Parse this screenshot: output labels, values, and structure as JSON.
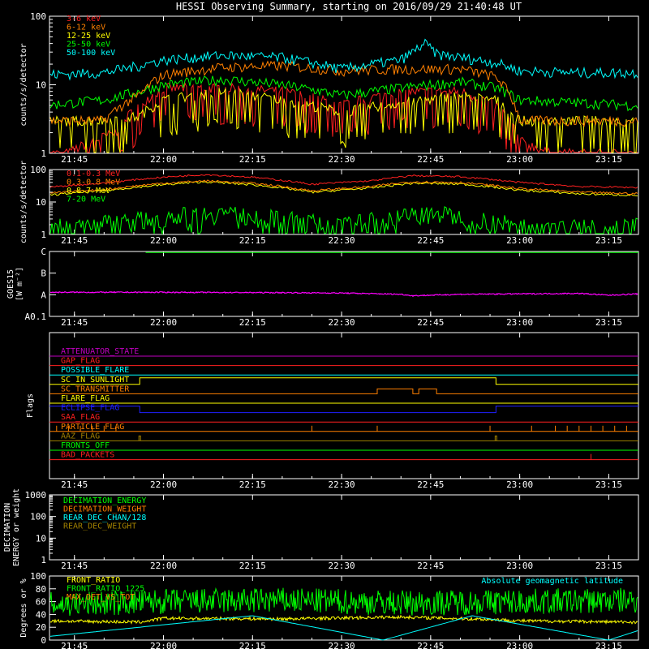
{
  "title": "HESSI Observing Summary, starting on 2016/09/29 21:40:48 UT",
  "time_ticks": [
    "21:45",
    "22:00",
    "22:15",
    "22:30",
    "22:45",
    "23:00",
    "23:15"
  ],
  "colors": {
    "background": "#000000",
    "axes": "#ffffff"
  },
  "chart_data": [
    {
      "id": "lightcurves-low",
      "type": "line",
      "ylabel": "counts/s/detector",
      "yscale": "log",
      "ylim": [
        1,
        100
      ],
      "yticks": [
        "1",
        "10",
        "100"
      ],
      "xlim": [
        "21:40:48",
        "23:20"
      ],
      "legend_position": "top-left",
      "series": [
        {
          "name": "3-6 keV",
          "color": "#ff2020",
          "x": [
            "21:40",
            "21:44",
            "21:48",
            "21:52",
            "21:56",
            "22:00",
            "22:10",
            "22:20",
            "22:30",
            "22:40",
            "22:50",
            "22:56",
            "23:00",
            "23:05",
            "23:10",
            "23:15",
            "23:20"
          ],
          "y": [
            1,
            1,
            1.5,
            2,
            5,
            9,
            9,
            8,
            5,
            8,
            8,
            5,
            1.5,
            1,
            1,
            1,
            1
          ]
        },
        {
          "name": "6-12 keV",
          "color": "#ff8000",
          "x": [
            "21:40",
            "21:50",
            "21:56",
            "22:00",
            "22:10",
            "22:20",
            "22:30",
            "22:40",
            "22:50",
            "22:56",
            "23:00",
            "23:10",
            "23:20"
          ],
          "y": [
            3,
            3,
            7,
            14,
            18,
            19,
            16,
            17,
            17,
            13,
            3,
            3,
            3
          ]
        },
        {
          "name": "12-25 keV",
          "color": "#ffff00",
          "x": [
            "21:40",
            "21:50",
            "21:56",
            "22:00",
            "22:10",
            "22:20",
            "22:30",
            "22:40",
            "22:50",
            "22:56",
            "23:00",
            "23:10",
            "23:20"
          ],
          "y": [
            3,
            3,
            3.5,
            6,
            8,
            6,
            4,
            5.5,
            7,
            6,
            3,
            3,
            3
          ]
        },
        {
          "name": "25-50 keV",
          "color": "#00ff00",
          "x": [
            "21:40",
            "21:50",
            "21:56",
            "22:00",
            "22:10",
            "22:20",
            "22:30",
            "22:40",
            "22:50",
            "22:56",
            "23:00",
            "23:10",
            "23:20"
          ],
          "y": [
            5,
            6,
            8,
            10,
            12,
            10,
            7,
            9,
            11,
            9,
            6,
            5.5,
            5
          ]
        },
        {
          "name": "50-100 keV",
          "color": "#00ffff",
          "x": [
            "21:40",
            "21:50",
            "21:56",
            "22:00",
            "22:10",
            "22:20",
            "22:30",
            "22:40",
            "22:42",
            "22:44",
            "22:46",
            "22:50",
            "22:56",
            "23:00",
            "23:10",
            "23:20"
          ],
          "y": [
            14,
            15,
            19,
            23,
            27,
            25,
            17,
            23,
            30,
            40,
            28,
            25,
            21,
            16,
            15,
            15
          ]
        }
      ]
    },
    {
      "id": "lightcurves-high",
      "type": "line",
      "ylabel": "counts/s/detector",
      "yscale": "log",
      "ylim": [
        1,
        100
      ],
      "yticks": [
        "1",
        "10",
        "100"
      ],
      "legend_position": "top-left",
      "series": [
        {
          "name": "0.1-0.3 MeV",
          "color": "#ff2020",
          "x": [
            "21:40",
            "21:50",
            "22:00",
            "22:07",
            "22:15",
            "22:25",
            "22:35",
            "22:42",
            "22:50",
            "23:00",
            "23:10",
            "23:20"
          ],
          "y": [
            28,
            38,
            58,
            70,
            58,
            35,
            45,
            65,
            60,
            40,
            30,
            28
          ]
        },
        {
          "name": "0.3-0.8 MeV",
          "color": "#ff8000",
          "x": [
            "21:40",
            "21:50",
            "22:00",
            "22:07",
            "22:15",
            "22:25",
            "22:35",
            "22:42",
            "22:50",
            "23:00",
            "23:10",
            "23:20"
          ],
          "y": [
            18,
            24,
            38,
            45,
            38,
            22,
            30,
            42,
            40,
            26,
            20,
            18
          ]
        },
        {
          "name": "0.8-7 MeV",
          "color": "#ffff00",
          "x": [
            "21:40",
            "21:50",
            "22:00",
            "22:07",
            "22:15",
            "22:25",
            "22:35",
            "22:42",
            "22:50",
            "23:00",
            "23:10",
            "23:20"
          ],
          "y": [
            16,
            22,
            34,
            42,
            34,
            20,
            27,
            38,
            36,
            23,
            18,
            16
          ]
        },
        {
          "name": "7-20 MeV",
          "color": "#00ff00",
          "x": [
            "21:45",
            "21:55",
            "22:00",
            "22:10",
            "22:15",
            "22:30",
            "22:40",
            "22:45",
            "22:50",
            "23:00",
            "23:10",
            "23:20"
          ],
          "y": [
            2,
            3,
            4,
            5,
            4,
            2,
            4,
            5,
            4,
            2,
            2,
            2
          ]
        }
      ]
    },
    {
      "id": "goes",
      "type": "line",
      "ylabel": "GOES15 [W m^-2]",
      "yscale": "log",
      "yticks": [
        "A0.1",
        "A",
        "B",
        "C"
      ],
      "series": [
        {
          "name": "",
          "color": "#ff00ff",
          "x": [
            "21:40",
            "22:00",
            "22:20",
            "22:30",
            "22:40",
            "22:42",
            "22:50",
            "23:00",
            "23:10",
            "23:15",
            "23:20"
          ],
          "y": [
            1.3,
            1.3,
            1.25,
            1.2,
            1.05,
            0.9,
            1.05,
            1.1,
            1.15,
            0.95,
            1.1
          ],
          "unit": "x1e-8"
        },
        {
          "name": "",
          "color": "#00ff00",
          "x": [
            "21:40",
            "23:20"
          ],
          "y": [
            9.0,
            9.0
          ],
          "unit": "x1e-7"
        }
      ]
    },
    {
      "id": "flags",
      "type": "table",
      "ylabel": "Flags",
      "rows": [
        {
          "name": "ATTENUATOR_STATE",
          "color": "#c000c0"
        },
        {
          "name": "GAP_FLAG",
          "color": "#ff2020"
        },
        {
          "name": "POSSIBLE_FLARE",
          "color": "#00ffff"
        },
        {
          "name": "SC_IN_SUNLIGHT",
          "color": "#ffff00"
        },
        {
          "name": "SC_TRANSMITTER",
          "color": "#ff8000"
        },
        {
          "name": "FLARE_FLAG",
          "color": "#ffff00"
        },
        {
          "name": "ECLIPSE_FLAG",
          "color": "#2020ff"
        },
        {
          "name": "SAA_FLAG",
          "color": "#ff2020"
        },
        {
          "name": "PARTICLE_FLAG",
          "color": "#ff8000"
        },
        {
          "name": "AAZ_FLAG",
          "color": "#a08000"
        },
        {
          "name": "FRONTS_OFF",
          "color": "#00ff00"
        },
        {
          "name": "BAD_PACKETS",
          "color": "#ff2020"
        }
      ],
      "intervals": {
        "SC_IN_SUNLIGHT": [
          [
            "21:56",
            "22:56"
          ]
        ],
        "ECLIPSE_FLAG_low": [
          [
            "21:56",
            "22:56"
          ]
        ],
        "SC_TRANSMITTER": [
          [
            "22:36",
            "22:42"
          ],
          [
            "22:43",
            "22:46"
          ]
        ]
      }
    },
    {
      "id": "decimation",
      "type": "line",
      "ylabel": "DECIMATION ENERGY or weight",
      "yscale": "log",
      "ylim": [
        1,
        1000
      ],
      "yticks": [
        "1",
        "10",
        "100",
        "1000"
      ],
      "legend_position": "top-left",
      "series": [
        {
          "name": "DECIMATION_ENERGY",
          "color": "#00ff00",
          "x": [],
          "y": []
        },
        {
          "name": "DECIMATION_WEIGHT",
          "color": "#ff8000",
          "x": [],
          "y": []
        },
        {
          "name": "REAR_DEC_CHAN/128",
          "color": "#00ffff",
          "x": [],
          "y": []
        },
        {
          "name": "REAR_DEC_WEIGHT",
          "color": "#a08000",
          "x": [],
          "y": []
        }
      ]
    },
    {
      "id": "ratios",
      "type": "line",
      "ylabel": "Degrees or %",
      "ylim": [
        0,
        100
      ],
      "yticks": [
        "0",
        "20",
        "40",
        "60",
        "80",
        "100"
      ],
      "legend_position": "top-left",
      "series": [
        {
          "name": "FRONT_RATIO",
          "color": "#ffff00",
          "x": [
            "21:40",
            "21:56",
            "22:00",
            "22:20",
            "22:40",
            "22:56",
            "23:00",
            "23:20"
          ],
          "y": [
            30,
            28,
            34,
            33,
            36,
            32,
            30,
            28
          ]
        },
        {
          "name": "FRONT_RATIO_1225",
          "color": "#00ff00",
          "x": [
            "21:40",
            "22:00",
            "22:20",
            "22:40",
            "23:00",
            "23:20"
          ],
          "y": [
            55,
            60,
            62,
            58,
            60,
            62
          ]
        },
        {
          "name": "MAX_DET_VS_TOT",
          "color": "#ff8000",
          "x": [],
          "y": []
        },
        {
          "name": "Absolute geomagnetic latitude",
          "color": "#00ffff",
          "x": [
            "21:40",
            "22:15",
            "22:37",
            "22:52",
            "23:15",
            "23:20"
          ],
          "y": [
            5,
            38,
            0,
            38,
            0,
            15
          ]
        }
      ]
    }
  ]
}
